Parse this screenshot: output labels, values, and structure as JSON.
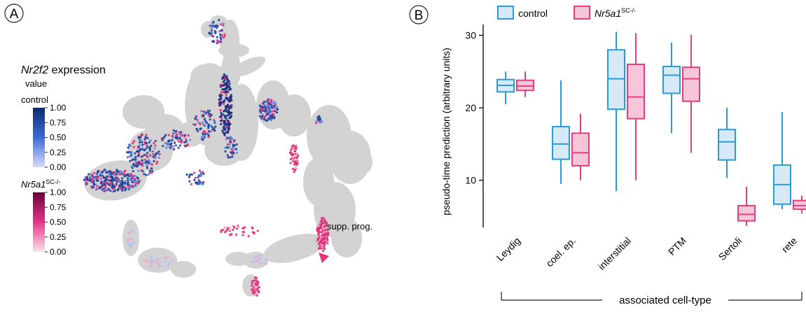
{
  "panels": {
    "a": {
      "letter": "A"
    },
    "b": {
      "letter": "B"
    }
  },
  "umap": {
    "legend_title_gene": "Nr2f2",
    "legend_title_suffix": " expression",
    "legend_value_label": "value",
    "groups": [
      {
        "name": "control",
        "name_sup": "",
        "color_low": "#d6dcf8",
        "color_high": "#0b2a6e",
        "ticks": [
          "1.00",
          "0.75",
          "0.50",
          "0.25",
          "0.00"
        ]
      },
      {
        "name": "Nr5a1",
        "name_sup": "SC-/-",
        "color_low": "#fbe0ec",
        "color_high": "#6b0036",
        "ticks": [
          "1.00",
          "0.75",
          "0.50",
          "0.25",
          "0.00"
        ]
      }
    ],
    "annotation": "supp. prog.",
    "colors": {
      "background_cells": "#d3d3d3",
      "arrow": "#e8347a",
      "control_dots": "#1f3f9a",
      "mutant_dots": "#e0307a"
    }
  },
  "chart_data": {
    "type": "boxplot",
    "ylabel": "pseudo-time prediction (arbitrary units)",
    "xlabel": "associated cell-type",
    "y_ticks": [
      10,
      20,
      30
    ],
    "ylim": [
      3.5,
      31.5
    ],
    "categories": [
      "Leydig",
      "coel. ep.",
      "interstitial",
      "PTM",
      "Sertoli",
      "rete"
    ],
    "legend": [
      {
        "name": "control",
        "name_sup": ""
      },
      {
        "name": "Nr5a1",
        "name_sup": "SC-/-"
      }
    ],
    "series": [
      {
        "key": "control",
        "stroke": "#2b9bd8",
        "fill": "#d5e9f7",
        "boxes": [
          {
            "whisker_low": 20.5,
            "q1": 22.2,
            "median": 23.1,
            "q3": 23.9,
            "whisker_high": 25.0
          },
          {
            "whisker_low": 9.5,
            "q1": 12.9,
            "median": 15.0,
            "q3": 17.4,
            "whisker_high": 23.8
          },
          {
            "whisker_low": 8.5,
            "q1": 19.8,
            "median": 24.0,
            "q3": 28.0,
            "whisker_high": 30.5
          },
          {
            "whisker_low": 16.5,
            "q1": 22.0,
            "median": 24.5,
            "q3": 25.7,
            "whisker_high": 29.0
          },
          {
            "whisker_low": 10.3,
            "q1": 12.8,
            "median": 15.3,
            "q3": 17.0,
            "whisker_high": 20.0
          },
          {
            "whisker_low": 6.0,
            "q1": 6.7,
            "median": 9.4,
            "q3": 12.1,
            "whisker_high": 19.4
          }
        ]
      },
      {
        "key": "mutant",
        "stroke": "#e0407f",
        "fill": "#f7c5d8",
        "boxes": [
          {
            "whisker_low": 21.5,
            "q1": 22.4,
            "median": 23.0,
            "q3": 23.8,
            "whisker_high": 25.0
          },
          {
            "whisker_low": 10.0,
            "q1": 12.0,
            "median": 13.8,
            "q3": 16.5,
            "whisker_high": 19.2
          },
          {
            "whisker_low": 10.0,
            "q1": 18.5,
            "median": 21.5,
            "q3": 26.0,
            "whisker_high": 30.3
          },
          {
            "whisker_low": 13.8,
            "q1": 20.9,
            "median": 24.0,
            "q3": 25.6,
            "whisker_high": 30.1
          },
          {
            "whisker_low": 3.7,
            "q1": 4.4,
            "median": 5.3,
            "q3": 6.5,
            "whisker_high": 9.1
          },
          {
            "whisker_low": 5.4,
            "q1": 6.0,
            "median": 6.5,
            "q3": 7.2,
            "whisker_high": 7.9
          }
        ]
      }
    ]
  }
}
